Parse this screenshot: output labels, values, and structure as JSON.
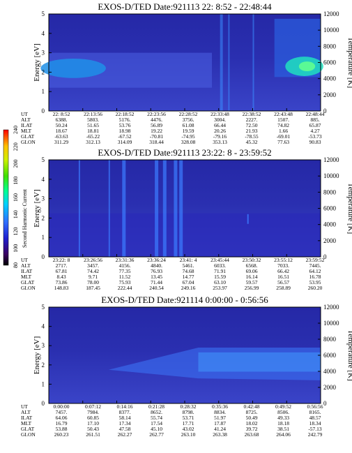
{
  "chart_data": [
    {
      "type": "heatmap",
      "title": "EXOS-D/TED   Date:921113  22: 8:52 - 22:48:44",
      "ylabel_left": "Energy [eV]",
      "ylabel_right": "Temperature [K]",
      "yticks_left": [
        "0",
        "1",
        "2",
        "3",
        "4",
        "5"
      ],
      "yticks_right": [
        "0",
        "2000",
        "4000",
        "6000",
        "8000",
        "10000",
        "12000"
      ],
      "ylim_left": [
        0,
        5
      ],
      "ylim_right": [
        0,
        12000
      ],
      "orbit_labels": [
        "UT",
        "ALT",
        "ILAT",
        "MLT",
        "GLAT",
        "GLON"
      ],
      "orbit_columns": [
        [
          "22: 8:52",
          "6388.",
          "50.24",
          "18.67",
          "-63.63",
          "311.29"
        ],
        [
          "22:13:56",
          "5803.",
          "51.65",
          "18.81",
          "-65.22",
          "312.13"
        ],
        [
          "22:18:52",
          "5176.",
          "53.76",
          "18.98",
          "-67.52",
          "314.09"
        ],
        [
          "22:23:56",
          "4476.",
          "56.89",
          "19.22",
          "-70.81",
          "318.44"
        ],
        [
          "22:28:52",
          "3756.",
          "61.08",
          "19.59",
          "-74.95",
          "328.08"
        ],
        [
          "22:33:48",
          "3004.",
          "66.44",
          "20.26",
          "-79.16",
          "353.13"
        ],
        [
          "22:38:52",
          "2227.",
          "72.50",
          "21.93",
          "-78.55",
          "45.32"
        ],
        [
          "22:43:48",
          "1507.",
          "74.82",
          "1.66",
          "-69.01",
          "77.63"
        ],
        [
          "22:48:44",
          "885.",
          "65.87",
          "4.27",
          "-53.73",
          "90.83"
        ]
      ]
    },
    {
      "type": "heatmap",
      "title": "EXOS-D/TED   Date:921113  23:22: 8 - 23:59:52",
      "ylabel_left": "Energy [eV]",
      "ylabel_right": "Temperature [K]",
      "yticks_left": [
        "0",
        "1",
        "2",
        "3",
        "4",
        "5"
      ],
      "yticks_right": [
        "0",
        "2000",
        "4000",
        "6000",
        "8000",
        "10000",
        "12000"
      ],
      "ylim_left": [
        0,
        5
      ],
      "ylim_right": [
        0,
        12000
      ],
      "orbit_labels": [
        "UT",
        "ALT",
        "ILAT",
        "MLT",
        "GLAT",
        "GLON"
      ],
      "orbit_columns": [
        [
          "23:22: 8",
          "2717.",
          "67.81",
          "8.43",
          "73.86",
          "148.83"
        ],
        [
          "23:26:56",
          "3457.",
          "74.42",
          "9.71",
          "78.00",
          "187.45"
        ],
        [
          "23:31:36",
          "4156.",
          "77.35",
          "11.52",
          "75.93",
          "222.44"
        ],
        [
          "23:36:24",
          "4840.",
          "76.93",
          "13.45",
          "71.44",
          "240.54"
        ],
        [
          "23:41: 4",
          "5461.",
          "74.68",
          "14.77",
          "67.04",
          "249.16"
        ],
        [
          "23:45:44",
          "6033.",
          "71.91",
          "15.59",
          "63.10",
          "253.97"
        ],
        [
          "23:50:32",
          "6568.",
          "69.06",
          "16.14",
          "59.57",
          "256.99"
        ],
        [
          "23:55:12",
          "7033.",
          "66.42",
          "16.51",
          "56.57",
          "258.89"
        ],
        [
          "23:59:52",
          "7445.",
          "64.12",
          "16.78",
          "53.95",
          "260.20"
        ]
      ],
      "colorbar": {
        "label": "Second Harmonic Current",
        "ticks": [
          "80",
          "100",
          "120",
          "140",
          "160",
          "180",
          "200",
          "220",
          "240"
        ],
        "range": [
          80,
          240
        ]
      }
    },
    {
      "type": "heatmap",
      "title": "EXOS-D/TED   Date:921114   0:00:00 - 0:56:56",
      "ylabel_left": "Energy [eV]",
      "ylabel_right": "Temperature [K]",
      "yticks_left": [
        "0",
        "1",
        "2",
        "3",
        "4",
        "5"
      ],
      "yticks_right": [
        "0",
        "2000",
        "4000",
        "6000",
        "8000",
        "10000",
        "12000"
      ],
      "ylim_left": [
        0,
        5
      ],
      "ylim_right": [
        0,
        12000
      ],
      "orbit_labels": [
        "UT",
        "ALT",
        "ILAT",
        "MLT",
        "GLAT",
        "GLON"
      ],
      "orbit_columns": [
        [
          "0:00:00",
          "7457.",
          "64.06",
          "16.79",
          "53.88",
          "260.23"
        ],
        [
          "0:07:12",
          "7984.",
          "60.85",
          "17.10",
          "50.43",
          "261.51"
        ],
        [
          "0:14:16",
          "8377.",
          "58.14",
          "17.34",
          "47.58",
          "262.27"
        ],
        [
          "0:21:28",
          "8652.",
          "55.74",
          "17.54",
          "45.10",
          "262.77"
        ],
        [
          "0:28:32",
          "8798.",
          "53.71",
          "17.71",
          "43.02",
          "263.10"
        ],
        [
          "0:35:36",
          "8834.",
          "51.97",
          "17.87",
          "41.24",
          "263.38"
        ],
        [
          "0:42:48",
          "8725.",
          "50.49",
          "18.02",
          "39.72",
          "263.68"
        ],
        [
          "0:49:52",
          "8506.",
          "49.33",
          "18.18",
          "38.51",
          "264.06"
        ],
        [
          "0:56:56",
          "8165.",
          "48.57",
          "18.34",
          "-57.13",
          "242.79"
        ]
      ]
    }
  ]
}
